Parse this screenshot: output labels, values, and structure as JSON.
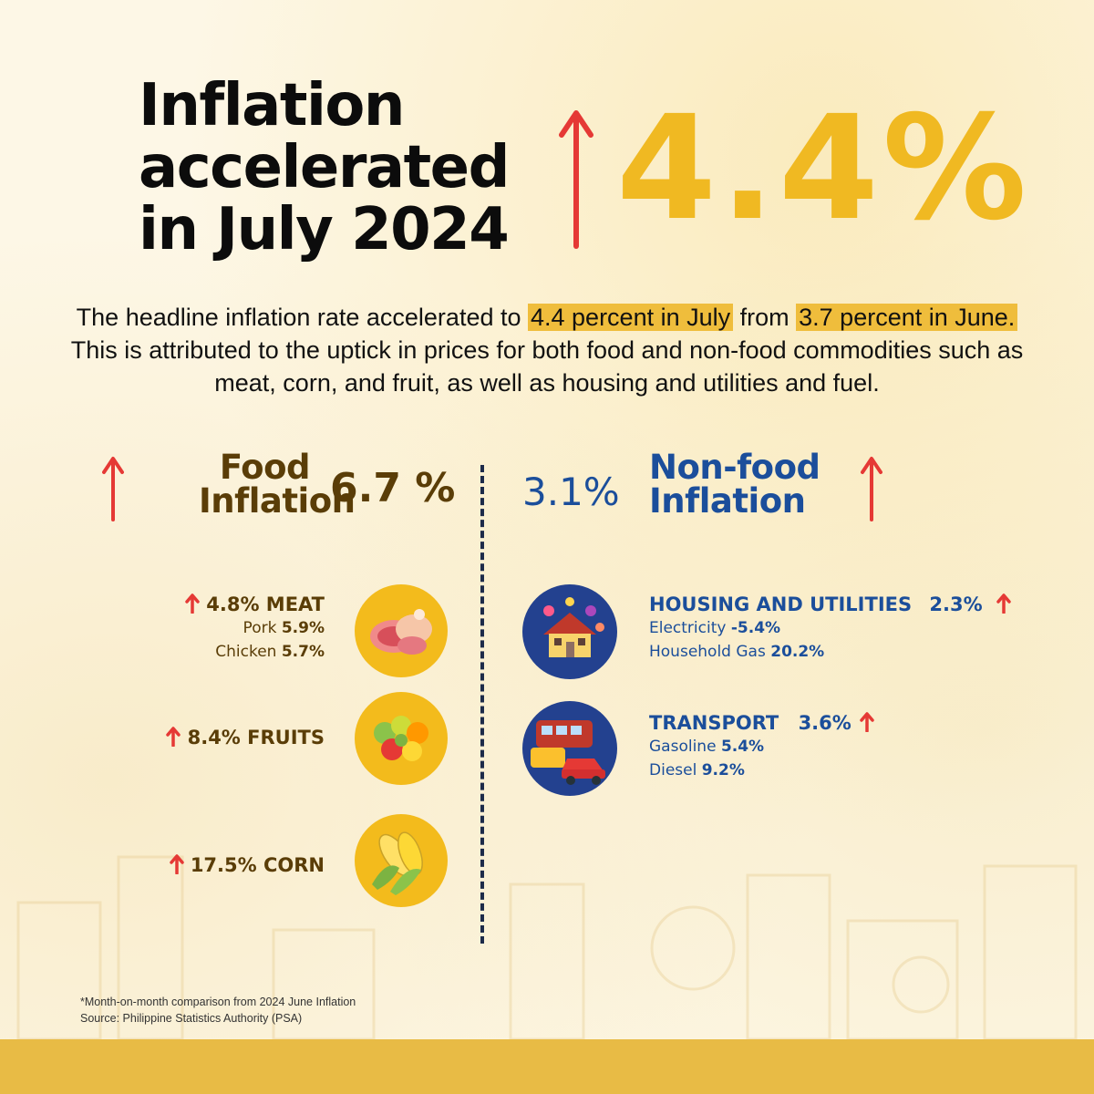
{
  "title": {
    "line1": "Inflation",
    "line2": "accelerated",
    "line3": "in July 2024"
  },
  "headline_rate": "4.4%",
  "description": {
    "part1": "The headline inflation rate accelerated to ",
    "highlight1": "4.4 percent in July",
    "part2": " from ",
    "highlight2": "3.7 percent in June.",
    "part3": " This is attributed to the uptick in prices for both food and non-food commodities such as meat, corn, and fruit, as well as housing and utilities and fuel."
  },
  "food": {
    "title_line1": "Food",
    "title_line2": "Inflation",
    "rate": "6.7 %",
    "items": [
      {
        "label": "4.8% MEAT",
        "icon": "meat-icon",
        "subs": [
          {
            "name": "Pork ",
            "value": "5.9%"
          },
          {
            "name": "Chicken ",
            "value": "5.7%"
          }
        ]
      },
      {
        "label": "8.4% FRUITS",
        "icon": "fruits-icon",
        "subs": []
      },
      {
        "label": "17.5% CORN",
        "icon": "corn-icon",
        "subs": []
      }
    ]
  },
  "nonfood": {
    "title_line1": "Non-food",
    "title_line2": "Inflation",
    "rate": "3.1%",
    "items": [
      {
        "label": "HOUSING AND UTILITIES",
        "rate": "2.3%",
        "icon": "house-icon",
        "subs": [
          {
            "name": "Electricity ",
            "value": "-5.4%"
          },
          {
            "name": "Household Gas ",
            "value": "20.2%"
          }
        ]
      },
      {
        "label": "TRANSPORT",
        "rate": "3.6%",
        "icon": "vehicles-icon",
        "subs": [
          {
            "name": "Gasoline ",
            "value": "5.4%"
          },
          {
            "name": "Diesel ",
            "value": "9.2%"
          }
        ]
      }
    ]
  },
  "footnote": {
    "line1": "*Month-on-month comparison from 2024 June Inflation",
    "line2": "Source: Philippine Statistics Authority (PSA)"
  },
  "colors": {
    "accent_yellow": "#f0b922",
    "arrow_red": "#e53935",
    "food_brown": "#5a3d07",
    "nonfood_blue": "#1b4e9b",
    "icon_circle_food": "#f3bb1c",
    "icon_circle_nonfood": "#23418f"
  }
}
